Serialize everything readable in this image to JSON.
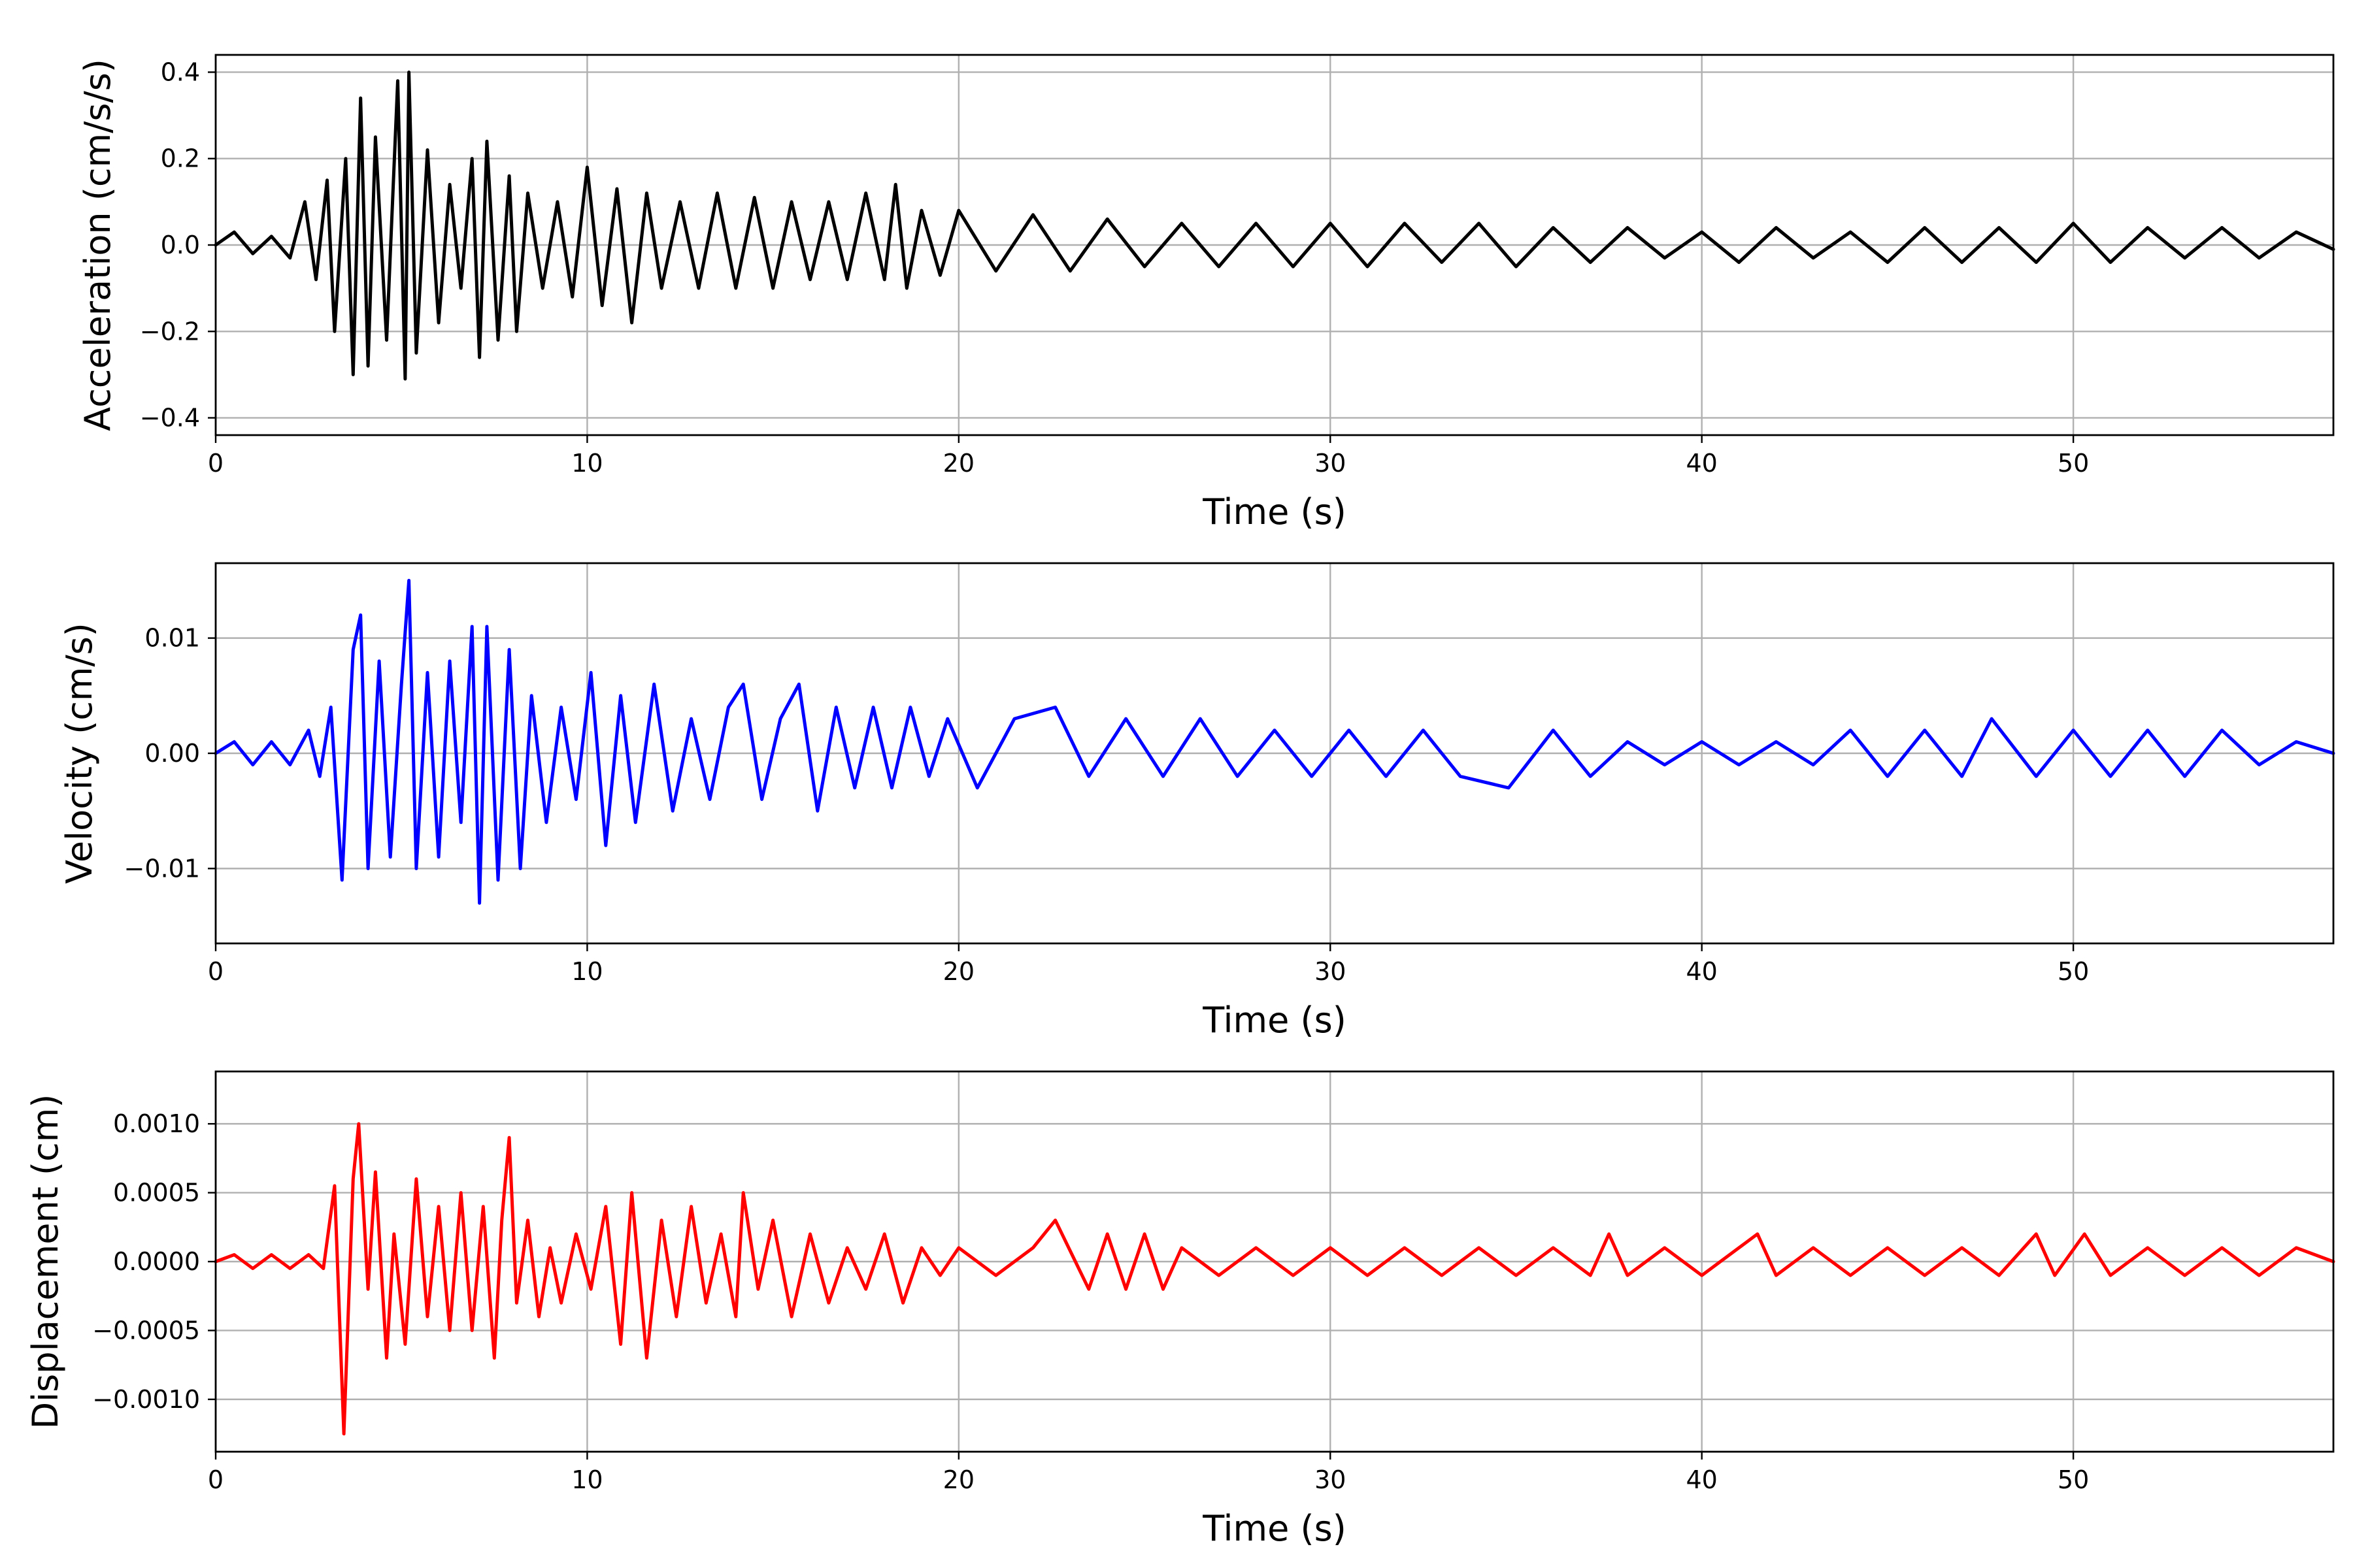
{
  "figure": {
    "chart_data": [
      {
        "type": "line",
        "title": "",
        "xlabel": "Time (s)",
        "ylabel": "Acceleration (cm/s/s)",
        "xlim": [
          0,
          57
        ],
        "ylim": [
          -0.44,
          0.44
        ],
        "xticks": [
          0,
          10,
          20,
          30,
          40,
          50
        ],
        "xtick_labels": [
          "0",
          "10",
          "20",
          "30",
          "40",
          "50"
        ],
        "yticks": [
          0.4,
          0.2,
          0.0,
          -0.2,
          -0.4
        ],
        "ytick_labels": [
          "0.4",
          "0.2",
          "0.0",
          "−0.2",
          "−0.4"
        ],
        "grid": true,
        "color": "#000000",
        "series": [
          {
            "x": [
              0,
              0.5,
              1,
              1.5,
              2,
              2.4,
              2.7,
              3,
              3.2,
              3.5,
              3.7,
              3.9,
              4.1,
              4.3,
              4.6,
              4.9,
              5.1,
              5.2,
              5.4,
              5.7,
              6,
              6.3,
              6.6,
              6.9,
              7.1,
              7.3,
              7.6,
              7.9,
              8.1,
              8.4,
              8.8,
              9.2,
              9.6,
              10,
              10.4,
              10.8,
              11.2,
              11.6,
              12,
              12.5,
              13,
              13.5,
              14,
              14.5,
              15,
              15.5,
              16,
              16.5,
              17,
              17.5,
              18,
              18.3,
              18.6,
              19,
              19.5,
              20,
              21,
              22,
              23,
              24,
              25,
              26,
              27,
              28,
              29,
              30,
              31,
              32,
              33,
              34,
              35,
              36,
              37,
              38,
              39,
              40,
              41,
              42,
              43,
              44,
              45,
              46,
              47,
              48,
              49,
              50,
              51,
              52,
              53,
              54,
              55,
              56,
              57
            ],
            "y": [
              0.0,
              0.03,
              -0.02,
              0.02,
              -0.03,
              0.1,
              -0.08,
              0.15,
              -0.2,
              0.2,
              -0.3,
              0.34,
              -0.28,
              0.25,
              -0.22,
              0.38,
              -0.31,
              0.4,
              -0.25,
              0.22,
              -0.18,
              0.14,
              -0.1,
              0.2,
              -0.26,
              0.24,
              -0.22,
              0.16,
              -0.2,
              0.12,
              -0.1,
              0.1,
              -0.12,
              0.18,
              -0.14,
              0.13,
              -0.18,
              0.12,
              -0.1,
              0.1,
              -0.1,
              0.12,
              -0.1,
              0.11,
              -0.1,
              0.1,
              -0.08,
              0.1,
              -0.08,
              0.12,
              -0.08,
              0.14,
              -0.1,
              0.08,
              -0.07,
              0.08,
              -0.06,
              0.07,
              -0.06,
              0.06,
              -0.05,
              0.05,
              -0.05,
              0.05,
              -0.05,
              0.05,
              -0.05,
              0.05,
              -0.04,
              0.05,
              -0.05,
              0.04,
              -0.04,
              0.04,
              -0.03,
              0.03,
              -0.04,
              0.04,
              -0.03,
              0.03,
              -0.04,
              0.04,
              -0.04,
              0.04,
              -0.04,
              0.05,
              -0.04,
              0.04,
              -0.03,
              0.04,
              -0.03,
              0.03,
              -0.01
            ]
          }
        ]
      },
      {
        "type": "line",
        "title": "",
        "xlabel": "Time (s)",
        "ylabel": "Velocity (cm/s)",
        "xlim": [
          0,
          57
        ],
        "ylim": [
          -0.0165,
          0.0165
        ],
        "xticks": [
          0,
          10,
          20,
          30,
          40,
          50
        ],
        "xtick_labels": [
          "0",
          "10",
          "20",
          "30",
          "40",
          "50"
        ],
        "yticks": [
          0.01,
          0.0,
          -0.01
        ],
        "ytick_labels": [
          "0.01",
          "0.00",
          "−0.01"
        ],
        "grid": true,
        "color": "#0000ff",
        "series": [
          {
            "x": [
              0,
              0.5,
              1,
              1.5,
              2,
              2.5,
              2.8,
              3.1,
              3.4,
              3.7,
              3.9,
              4.1,
              4.4,
              4.7,
              5,
              5.2,
              5.4,
              5.7,
              6,
              6.3,
              6.6,
              6.9,
              7.1,
              7.3,
              7.6,
              7.9,
              8.2,
              8.5,
              8.9,
              9.3,
              9.7,
              10.1,
              10.5,
              10.9,
              11.3,
              11.8,
              12.3,
              12.8,
              13.3,
              13.8,
              14.2,
              14.7,
              15.2,
              15.7,
              16.2,
              16.7,
              17.2,
              17.7,
              18.2,
              18.7,
              19.2,
              19.7,
              20.5,
              21.5,
              22.6,
              23.5,
              24.5,
              25.5,
              26.5,
              27.5,
              28.5,
              29.5,
              30.5,
              31.5,
              32.5,
              33.5,
              34.8,
              36,
              37,
              38,
              39,
              40,
              41,
              42,
              43,
              44,
              45,
              46,
              47,
              47.8,
              49,
              50,
              51,
              52,
              53,
              54,
              55,
              56,
              57
            ],
            "y": [
              0.0,
              0.001,
              -0.001,
              0.001,
              -0.001,
              0.002,
              -0.002,
              0.004,
              -0.011,
              0.009,
              0.012,
              -0.01,
              0.008,
              -0.009,
              0.006,
              0.015,
              -0.01,
              0.007,
              -0.009,
              0.008,
              -0.006,
              0.011,
              -0.013,
              0.011,
              -0.011,
              0.009,
              -0.01,
              0.005,
              -0.006,
              0.004,
              -0.004,
              0.007,
              -0.008,
              0.005,
              -0.006,
              0.006,
              -0.005,
              0.003,
              -0.004,
              0.004,
              0.006,
              -0.004,
              0.003,
              0.006,
              -0.005,
              0.004,
              -0.003,
              0.004,
              -0.003,
              0.004,
              -0.002,
              0.003,
              -0.003,
              0.003,
              0.004,
              -0.002,
              0.003,
              -0.002,
              0.003,
              -0.002,
              0.002,
              -0.002,
              0.002,
              -0.002,
              0.002,
              -0.002,
              -0.003,
              0.002,
              -0.002,
              0.001,
              -0.001,
              0.001,
              -0.001,
              0.001,
              -0.001,
              0.002,
              -0.002,
              0.002,
              -0.002,
              0.003,
              -0.002,
              0.002,
              -0.002,
              0.002,
              -0.002,
              0.002,
              -0.001,
              0.001,
              0.0
            ]
          }
        ]
      },
      {
        "type": "line",
        "title": "",
        "xlabel": "Time (s)",
        "ylabel": "Displacement (cm)",
        "xlim": [
          0,
          57
        ],
        "ylim": [
          -0.00138,
          0.00138
        ],
        "xticks": [
          0,
          10,
          20,
          30,
          40,
          50
        ],
        "xtick_labels": [
          "0",
          "10",
          "20",
          "30",
          "40",
          "50"
        ],
        "yticks": [
          0.001,
          0.0005,
          0.0,
          -0.0005,
          -0.001
        ],
        "ytick_labels": [
          "0.0010",
          "0.0005",
          "0.0000",
          "−0.0005",
          "−0.0010"
        ],
        "grid": true,
        "color": "#ff0000",
        "series": [
          {
            "x": [
              0,
              0.5,
              1,
              1.5,
              2,
              2.5,
              2.9,
              3.2,
              3.45,
              3.7,
              3.85,
              4.1,
              4.3,
              4.6,
              4.8,
              5.1,
              5.4,
              5.7,
              6,
              6.3,
              6.6,
              6.9,
              7.2,
              7.5,
              7.7,
              7.9,
              8.1,
              8.4,
              8.7,
              9,
              9.3,
              9.7,
              10.1,
              10.5,
              10.9,
              11.2,
              11.6,
              12,
              12.4,
              12.8,
              13.2,
              13.6,
              14,
              14.2,
              14.6,
              15,
              15.5,
              16,
              16.5,
              17,
              17.5,
              18,
              18.5,
              19,
              19.5,
              20,
              21,
              22,
              22.6,
              23.5,
              24,
              24.5,
              25,
              25.5,
              26,
              27,
              28,
              29,
              30,
              31,
              32,
              33,
              34,
              35,
              36,
              37,
              37.5,
              38,
              39,
              40,
              41,
              41.5,
              42,
              43,
              44,
              45,
              46,
              47,
              48,
              49,
              49.5,
              50.3,
              51,
              52,
              53,
              54,
              55,
              56,
              57
            ],
            "y": [
              0.0,
              5e-05,
              -5e-05,
              5e-05,
              -5e-05,
              5e-05,
              -5e-05,
              0.00055,
              -0.00125,
              0.0006,
              0.001,
              -0.0002,
              0.00065,
              -0.0007,
              0.0002,
              -0.0006,
              0.0006,
              -0.0004,
              0.0004,
              -0.0005,
              0.0005,
              -0.0005,
              0.0004,
              -0.0007,
              0.0003,
              0.0009,
              -0.0003,
              0.0003,
              -0.0004,
              0.0001,
              -0.0003,
              0.0002,
              -0.0002,
              0.0004,
              -0.0006,
              0.0005,
              -0.0007,
              0.0003,
              -0.0004,
              0.0004,
              -0.0003,
              0.0002,
              -0.0004,
              0.0005,
              -0.0002,
              0.0003,
              -0.0004,
              0.0002,
              -0.0003,
              0.0001,
              -0.0002,
              0.0002,
              -0.0003,
              0.0001,
              -0.0001,
              0.0001,
              -0.0001,
              0.0001,
              0.0003,
              -0.0002,
              0.0002,
              -0.0002,
              0.0002,
              -0.0002,
              0.0001,
              -0.0001,
              0.0001,
              -0.0001,
              0.0001,
              -0.0001,
              0.0001,
              -0.0001,
              0.0001,
              -0.0001,
              0.0001,
              -0.0001,
              0.0002,
              -0.0001,
              0.0001,
              -0.0001,
              0.0001,
              0.0002,
              -0.0001,
              0.0001,
              -0.0001,
              0.0001,
              -0.0001,
              0.0001,
              -0.0001,
              0.0002,
              -0.0001,
              0.0002,
              -0.0001,
              0.0001,
              -0.0001,
              0.0001,
              -0.0001,
              0.0001,
              0.0
            ]
          }
        ]
      }
    ]
  }
}
